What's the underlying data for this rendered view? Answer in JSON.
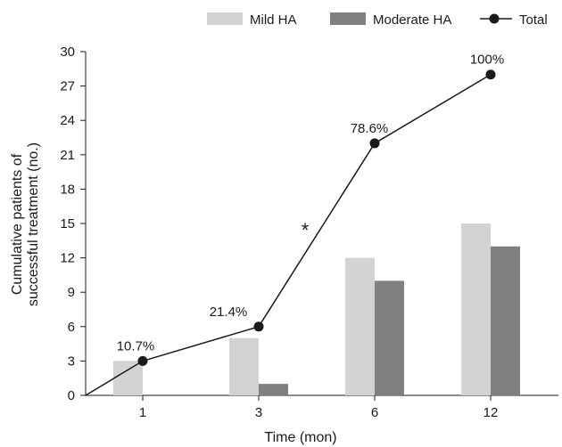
{
  "chart_data": {
    "type": "bar",
    "categories": [
      "1",
      "3",
      "6",
      "12"
    ],
    "series": [
      {
        "name": "Mild HA",
        "type": "bar",
        "color": "#d3d3d3",
        "values": [
          3,
          5,
          12,
          15
        ]
      },
      {
        "name": "Moderate HA",
        "type": "bar",
        "color": "#808080",
        "values": [
          0,
          1,
          10,
          13
        ]
      },
      {
        "name": "Total",
        "type": "line",
        "color": "#1a1a1a",
        "values": [
          3,
          6,
          22,
          28
        ]
      }
    ],
    "line_start_value": 0,
    "data_labels": [
      "10.7%",
      "21.4%",
      "78.6%",
      "100%"
    ],
    "annotation": "*",
    "xlabel": "Time (mon)",
    "ylabel": [
      "Cumulative patients of",
      "successful treatment (no.)"
    ],
    "ylim": [
      0,
      30
    ],
    "yticks": [
      "0",
      "3",
      "6",
      "9",
      "12",
      "15",
      "18",
      "21",
      "24",
      "27",
      "30"
    ],
    "legend_position": "top-right",
    "grid": false
  }
}
